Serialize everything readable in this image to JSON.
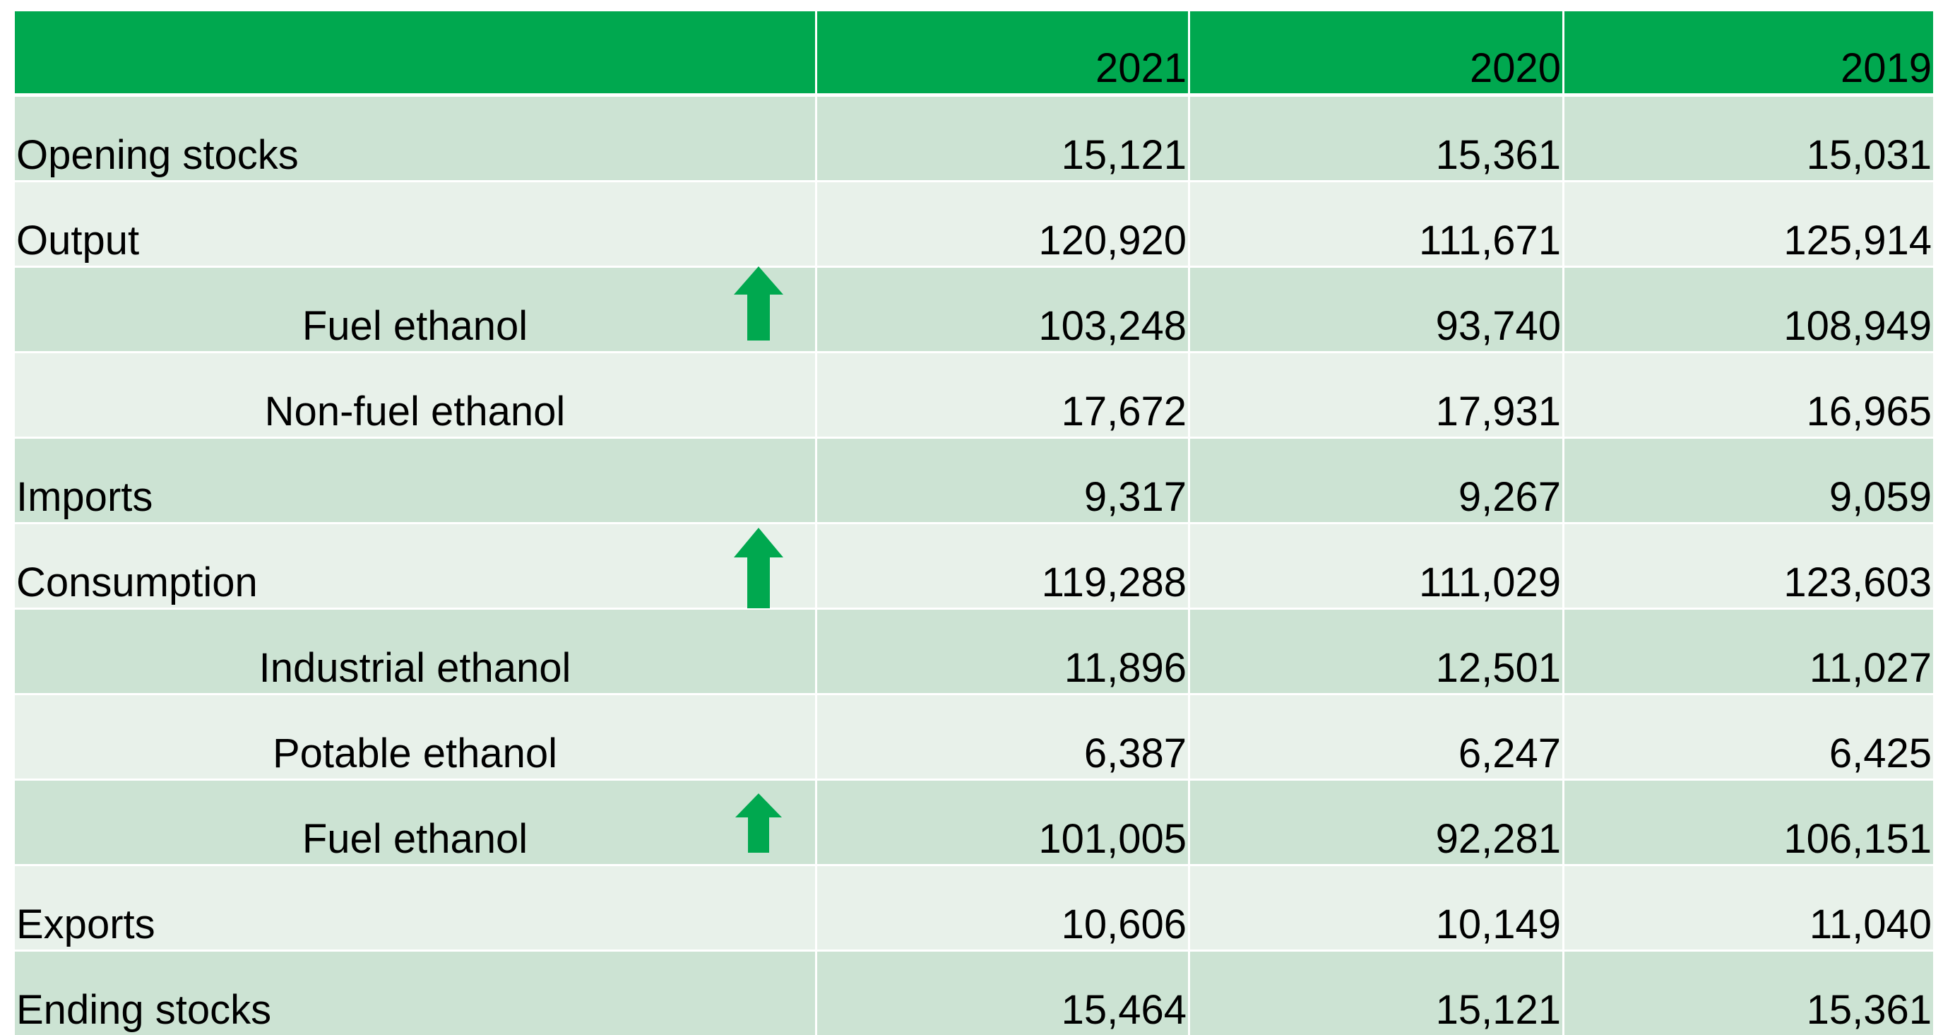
{
  "table": {
    "columns": [
      "2021",
      "2020",
      "2019"
    ],
    "rows": [
      {
        "label": "Opening stocks",
        "values": [
          "15,121",
          "15,361",
          "15,031"
        ]
      },
      {
        "label": "Output",
        "values": [
          "120,920",
          "111,671",
          "125,914"
        ],
        "children": [
          {
            "label": "Fuel ethanol",
            "values": [
              "103,248",
              "93,740",
              "108,949"
            ]
          },
          {
            "label": "Non-fuel ethanol",
            "values": [
              "17,672",
              "17,931",
              "16,965"
            ]
          }
        ]
      },
      {
        "label": "Imports",
        "values": [
          "9,317",
          "9,267",
          "9,059"
        ]
      },
      {
        "label": "Consumption",
        "values": [
          "119,288",
          "111,029",
          "123,603"
        ],
        "children": [
          {
            "label": "Industrial ethanol",
            "values": [
              "11,896",
              "12,501",
              "11,027"
            ]
          },
          {
            "label": "Potable ethanol",
            "values": [
              "6,387",
              "6,247",
              "6,425"
            ]
          },
          {
            "label": "Fuel ethanol",
            "values": [
              "101,005",
              "92,281",
              "106,151"
            ]
          }
        ]
      },
      {
        "label": "Exports",
        "values": [
          "10,606",
          "10,149",
          "11,040"
        ]
      },
      {
        "label": "Ending stocks",
        "values": [
          "15,464",
          "15,121",
          "15,361"
        ]
      }
    ]
  }
}
